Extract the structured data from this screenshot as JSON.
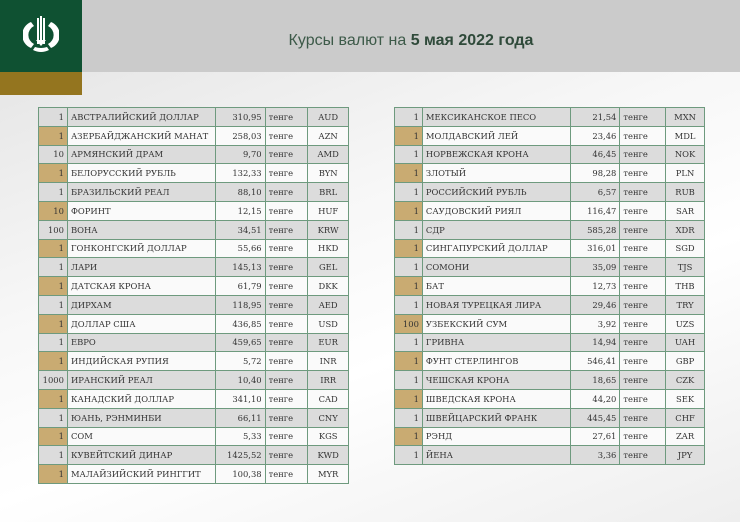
{
  "header": {
    "title_prefix": "Курсы валют на ",
    "title_date": "5 мая 2022 года",
    "logo_icon": "national-bank-kazakhstan-emblem"
  },
  "colors": {
    "brand_green": "#0f5132",
    "gold": "#94751f",
    "highlight": "#c9ab72"
  },
  "unit_label": "тенге",
  "left_table": [
    {
      "qty": "1",
      "name": "АВСТРАЛИЙСКИЙ ДОЛЛАР",
      "rate": "310,95",
      "unit": "тенге",
      "code": "AUD"
    },
    {
      "qty": "1",
      "name": "АЗЕРБАЙДЖАНСКИЙ МАНАТ",
      "rate": "258,03",
      "unit": "тенге",
      "code": "AZN"
    },
    {
      "qty": "10",
      "name": "АРМЯНСКИЙ  ДРАМ",
      "rate": "9,70",
      "unit": "тенге",
      "code": "AMD"
    },
    {
      "qty": "1",
      "name": "БЕЛОРУССКИЙ РУБЛЬ",
      "rate": "132,33",
      "unit": "тенге",
      "code": "BYN"
    },
    {
      "qty": "1",
      "name": "БРАЗИЛЬСКИЙ РЕАЛ",
      "rate": "88,10",
      "unit": "тенге",
      "code": "BRL"
    },
    {
      "qty": "10",
      "name": "ФОРИНТ",
      "rate": "12,15",
      "unit": "тенге",
      "code": "HUF"
    },
    {
      "qty": "100",
      "name": "ВОНА",
      "rate": "34,51",
      "unit": "тенге",
      "code": "KRW"
    },
    {
      "qty": "1",
      "name": "ГОНКОНГСКИЙ ДОЛЛАР",
      "rate": "55,66",
      "unit": "тенге",
      "code": "HKD"
    },
    {
      "qty": "1",
      "name": "ЛАРИ",
      "rate": "145,13",
      "unit": "тенге",
      "code": "GEL"
    },
    {
      "qty": "1",
      "name": "ДАТСКАЯ КРОНА",
      "rate": "61,79",
      "unit": "тенге",
      "code": "DKK"
    },
    {
      "qty": "1",
      "name": "ДИРХАМ",
      "rate": "118,95",
      "unit": "тенге",
      "code": "AED"
    },
    {
      "qty": "1",
      "name": "ДОЛЛАР США",
      "rate": "436,85",
      "unit": "тенге",
      "code": "USD"
    },
    {
      "qty": "1",
      "name": "ЕВРО",
      "rate": "459,65",
      "unit": "тенге",
      "code": "EUR"
    },
    {
      "qty": "1",
      "name": "ИНДИЙСКАЯ РУПИЯ",
      "rate": "5,72",
      "unit": "тенге",
      "code": "INR"
    },
    {
      "qty": "1000",
      "name": "ИРАНСКИЙ РЕАЛ",
      "rate": "10,40",
      "unit": "тенге",
      "code": "IRR"
    },
    {
      "qty": "1",
      "name": "КАНАДСКИЙ ДОЛЛАР",
      "rate": "341,10",
      "unit": "тенге",
      "code": "CAD"
    },
    {
      "qty": "1",
      "name": "ЮАНЬ, РЭНМИНБИ",
      "rate": "66,11",
      "unit": "тенге",
      "code": "CNY"
    },
    {
      "qty": "1",
      "name": "СОМ",
      "rate": "5,33",
      "unit": "тенге",
      "code": "KGS"
    },
    {
      "qty": "1",
      "name": "КУВЕЙТСКИЙ ДИНАР",
      "rate": "1425,52",
      "unit": "тенге",
      "code": "KWD"
    },
    {
      "qty": "1",
      "name": "МАЛАЙЗИЙСКИЙ РИНГГИТ",
      "rate": "100,38",
      "unit": "тенге",
      "code": "MYR"
    }
  ],
  "right_table": [
    {
      "qty": "1",
      "name": "МЕКСИКАНСКОЕ ПЕСО",
      "rate": "21,54",
      "unit": "тенге",
      "code": "MXN"
    },
    {
      "qty": "1",
      "name": "МОЛДАВСКИЙ ЛЕЙ",
      "rate": "23,46",
      "unit": "тенге",
      "code": "MDL"
    },
    {
      "qty": "1",
      "name": "НОРВЕЖСКАЯ КРОНА",
      "rate": "46,45",
      "unit": "тенге",
      "code": "NOK"
    },
    {
      "qty": "1",
      "name": "ЗЛОТЫЙ",
      "rate": "98,28",
      "unit": "тенге",
      "code": "PLN"
    },
    {
      "qty": "1",
      "name": "РОССИЙСКИЙ РУБЛЬ",
      "rate": "6,57",
      "unit": "тенге",
      "code": "RUB"
    },
    {
      "qty": "1",
      "name": "САУДОВСКИЙ РИЯЛ",
      "rate": "116,47",
      "unit": "тенге",
      "code": "SAR"
    },
    {
      "qty": "1",
      "name": "СДР",
      "rate": "585,28",
      "unit": "тенге",
      "code": "XDR"
    },
    {
      "qty": "1",
      "name": "СИНГАПУРСКИЙ ДОЛЛАР",
      "rate": "316,01",
      "unit": "тенге",
      "code": "SGD"
    },
    {
      "qty": "1",
      "name": "СОМОНИ",
      "rate": "35,09",
      "unit": "тенге",
      "code": "TJS"
    },
    {
      "qty": "1",
      "name": "БАТ",
      "rate": "12,73",
      "unit": "тенге",
      "code": "THB"
    },
    {
      "qty": "1",
      "name": "НОВАЯ ТУРЕЦКАЯ ЛИРА",
      "rate": "29,46",
      "unit": "тенге",
      "code": "TRY"
    },
    {
      "qty": "100",
      "name": "УЗБЕКСКИЙ СУМ",
      "rate": "3,92",
      "unit": "тенге",
      "code": "UZS"
    },
    {
      "qty": "1",
      "name": "ГРИВНА",
      "rate": "14,94",
      "unit": "тенге",
      "code": "UAH"
    },
    {
      "qty": "1",
      "name": "ФУНТ СТЕРЛИНГОВ",
      "rate": "546,41",
      "unit": "тенге",
      "code": "GBP"
    },
    {
      "qty": "1",
      "name": "ЧЕШСКАЯ КРОНА",
      "rate": "18,65",
      "unit": "тенге",
      "code": "CZK"
    },
    {
      "qty": "1",
      "name": "ШВЕДСКАЯ КРОНА",
      "rate": "44,20",
      "unit": "тенге",
      "code": "SEK"
    },
    {
      "qty": "1",
      "name": "ШВЕЙЦАРСКИЙ ФРАНК",
      "rate": "445,45",
      "unit": "тенге",
      "code": "CHF"
    },
    {
      "qty": "1",
      "name": "РЭНД",
      "rate": "27,61",
      "unit": "тенге",
      "code": "ZAR"
    },
    {
      "qty": "1",
      "name": "ЙЕНА",
      "rate": "3,36",
      "unit": "тенге",
      "code": "JPY"
    }
  ]
}
